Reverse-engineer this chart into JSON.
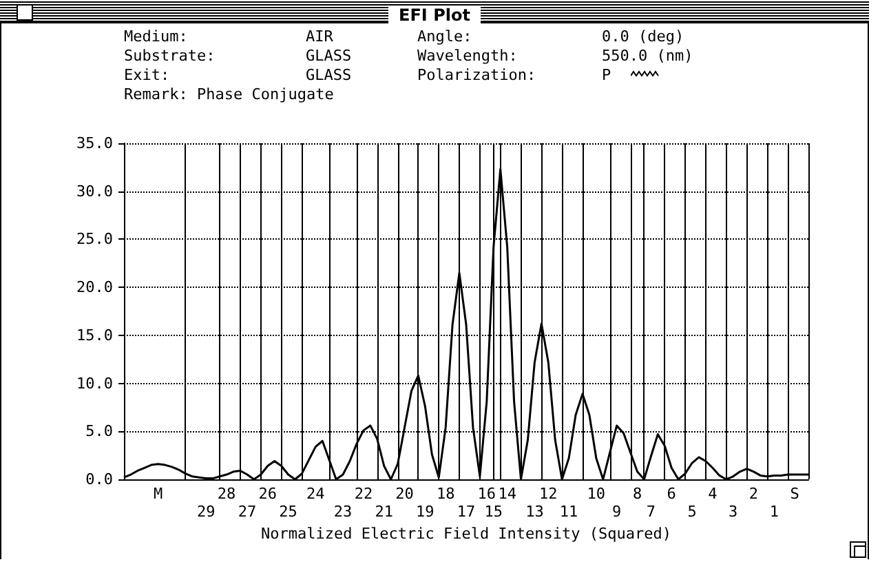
{
  "chart_data": {
    "type": "line",
    "title": "EFI Plot",
    "xlabel": "Normalized Electric Field Intensity (Squared)",
    "annotations": [
      "Medium:",
      "AIR",
      "Angle:",
      "0.0 (deg)",
      "Substrate:",
      "GLASS",
      "Wavelength:",
      "550.0 (nm)",
      "Exit:",
      "GLASS",
      "Polarization:",
      "P",
      "Remark: Phase Conjugate"
    ],
    "categories": [
      null,
      null,
      null,
      null,
      null,
      "M",
      null,
      null,
      null,
      null,
      null,
      null,
      "29",
      null,
      null,
      "28",
      null,
      null,
      "27",
      null,
      null,
      "26",
      null,
      null,
      "25",
      null,
      null,
      null,
      "24",
      null,
      null,
      null,
      "23",
      null,
      null,
      "22",
      null,
      null,
      "21",
      null,
      null,
      "20",
      null,
      null,
      "19",
      null,
      null,
      "18",
      null,
      null,
      "17",
      null,
      null,
      "16",
      "15",
      null,
      "14",
      null,
      null,
      null,
      "13",
      null,
      "12",
      null,
      null,
      "11",
      null,
      null,
      null,
      "10",
      null,
      null,
      "9",
      null,
      null,
      "8",
      null,
      "7",
      null,
      null,
      "6",
      null,
      null,
      "5",
      null,
      null,
      "4",
      null,
      null,
      "3",
      null,
      null,
      "2",
      null,
      null,
      "1",
      null,
      null,
      "S",
      null,
      null
    ],
    "series": [
      {
        "color": "#000000",
        "values": [
          0.2,
          0.5,
          0.9,
          1.2,
          1.5,
          1.6,
          1.5,
          1.3,
          1.0,
          0.6,
          0.3,
          0.2,
          0.1,
          0.1,
          0.3,
          0.5,
          0.8,
          0.9,
          0.5,
          0.0,
          0.5,
          1.4,
          1.9,
          1.4,
          0.5,
          0.0,
          0.6,
          2.0,
          3.4,
          4.0,
          2.0,
          0.0,
          0.5,
          1.9,
          3.7,
          5.1,
          5.6,
          4.2,
          1.4,
          0.0,
          1.6,
          5.4,
          9.2,
          10.8,
          7.6,
          2.6,
          0.2,
          5.4,
          16.1,
          21.5,
          16.1,
          5.4,
          0.3,
          8.1,
          24.2,
          32.3,
          24.2,
          8.1,
          0.0,
          4.1,
          12.2,
          16.2,
          12.2,
          4.1,
          0.0,
          2.2,
          6.7,
          8.9,
          6.7,
          2.2,
          0.0,
          2.8,
          5.6,
          4.8,
          2.8,
          0.8,
          0.0,
          2.4,
          4.7,
          3.5,
          1.2,
          0.0,
          0.6,
          1.7,
          2.3,
          1.9,
          1.2,
          0.4,
          0.0,
          0.3,
          0.8,
          1.1,
          0.8,
          0.4,
          0.3,
          0.4,
          0.4,
          0.5,
          0.5,
          0.5,
          0.5
        ]
      }
    ],
    "ylim": [
      0,
      35
    ],
    "yticks": [
      {
        "value": 0,
        "label": "0.0"
      },
      {
        "value": 5,
        "label": "5.0"
      },
      {
        "value": 10,
        "label": "10.0"
      },
      {
        "value": 15,
        "label": "15.0"
      },
      {
        "value": 20,
        "label": "20.0"
      },
      {
        "value": 25,
        "label": "25.0"
      },
      {
        "value": 30,
        "label": "30.0"
      },
      {
        "value": 35,
        "label": "35.0"
      }
    ],
    "grid": "y",
    "marker": "none",
    "line_style": "solid"
  }
}
